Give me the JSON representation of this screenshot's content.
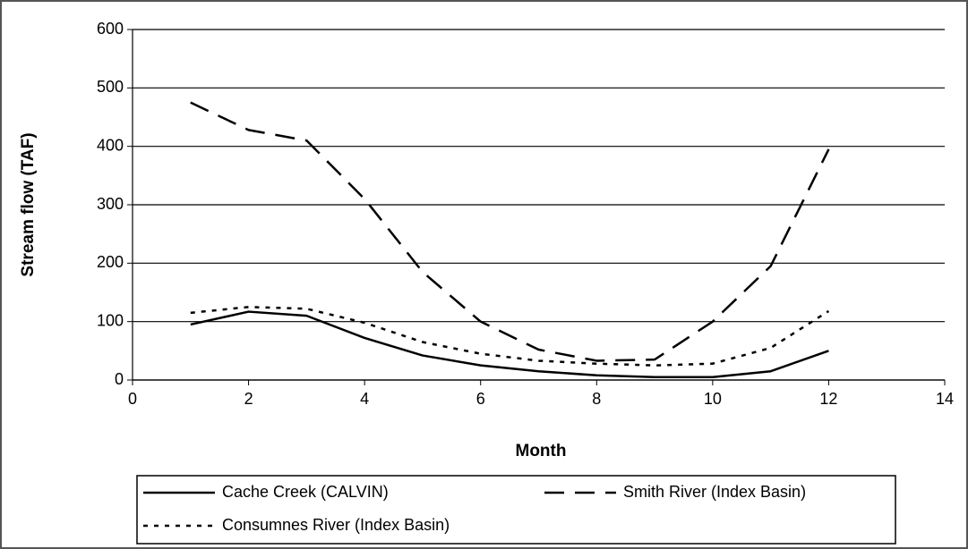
{
  "chart_data": {
    "type": "line",
    "x_label": "Month",
    "y_label": "Stream flow (TAF)",
    "x": [
      1,
      2,
      3,
      4,
      5,
      6,
      7,
      8,
      9,
      10,
      11,
      12
    ],
    "series": [
      {
        "name": "Cache Creek (CALVIN)",
        "color": "#000000",
        "linestyle": "solid",
        "values": [
          95,
          117,
          110,
          72,
          42,
          25,
          15,
          8,
          5,
          5,
          15,
          50
        ]
      },
      {
        "name": "Smith River (Index Basin)",
        "color": "#000000",
        "linestyle": "dashed",
        "values": [
          475,
          428,
          410,
          310,
          185,
          100,
          52,
          33,
          35,
          100,
          195,
          395
        ]
      },
      {
        "name": "Consumnes River (Index Basin)",
        "color": "#000000",
        "linestyle": "dotted",
        "values": [
          115,
          125,
          122,
          98,
          65,
          45,
          33,
          28,
          25,
          28,
          55,
          118
        ]
      }
    ],
    "xlim": [
      0,
      14
    ],
    "xticks": [
      0,
      2,
      4,
      6,
      8,
      10,
      12,
      14
    ],
    "ylim": [
      0,
      600
    ],
    "yticks": [
      0,
      100,
      200,
      300,
      400,
      500,
      600
    ],
    "grid": true,
    "legend": "bottom"
  }
}
